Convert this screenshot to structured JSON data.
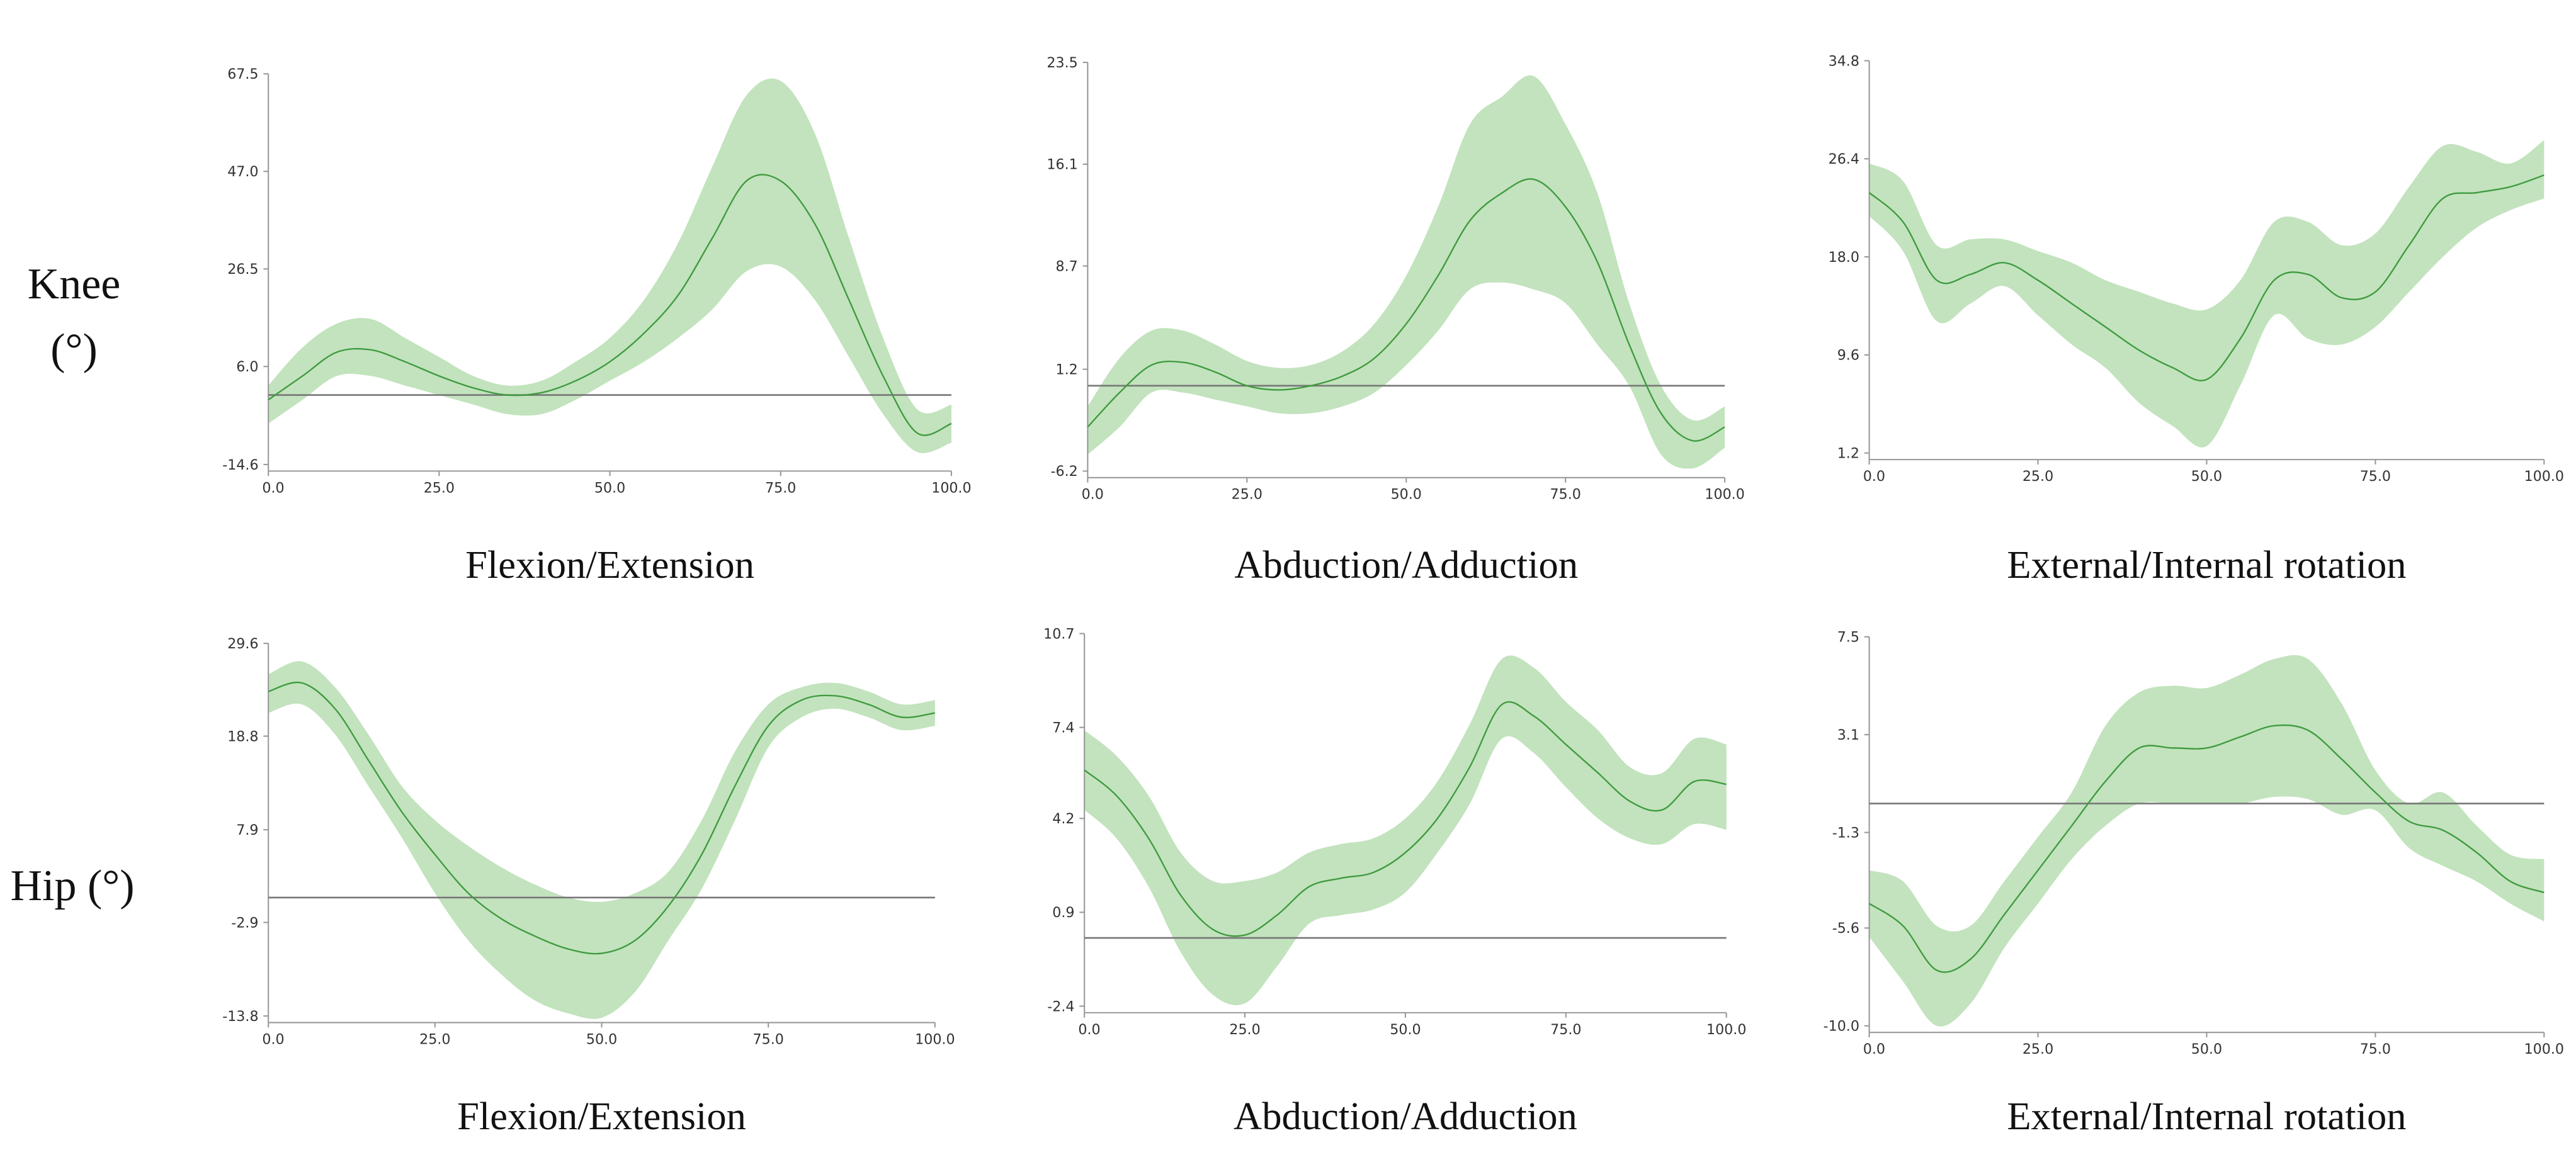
{
  "row_labels": [
    "Knee (°)",
    "Hip (°)"
  ],
  "chart_data": [
    {
      "type": "line",
      "title": "Flexion/Extension",
      "color": "#3f9a3f",
      "band_color": "#c2e3bd",
      "zero_line": true,
      "x": [
        0,
        5,
        10,
        15,
        20,
        25,
        30,
        35,
        40,
        45,
        50,
        55,
        60,
        65,
        70,
        75,
        80,
        85,
        90,
        95,
        100
      ],
      "values": [
        -1,
        4,
        9,
        9.5,
        7,
        4,
        1.5,
        0,
        0.5,
        3,
        7,
        13,
        21,
        33,
        45,
        45,
        36,
        20,
        4,
        -8,
        -6
      ],
      "upper": [
        2,
        10,
        15,
        16,
        12,
        8,
        4,
        2,
        3,
        7,
        12,
        20,
        32,
        48,
        63,
        66,
        55,
        33,
        12,
        -3,
        -2
      ],
      "lower": [
        -6,
        -1,
        4,
        4,
        2,
        0,
        -2,
        -4,
        -4,
        -1,
        3,
        7,
        12,
        18,
        26,
        27,
        20,
        8,
        -4,
        -12,
        -10
      ],
      "xlim": [
        0,
        100
      ],
      "xticks": [
        {
          "value": 0,
          "label": "0.0"
        },
        {
          "value": 25,
          "label": "25.0"
        },
        {
          "value": 50,
          "label": "50.0"
        },
        {
          "value": 75,
          "label": "75.0"
        },
        {
          "value": 100,
          "label": "100.0"
        }
      ],
      "ylim": [
        -14.6,
        67.5
      ],
      "yticks": [
        -14.6,
        {
          "value": 6,
          "label": "6.0"
        },
        26.5,
        {
          "value": 47,
          "label": "47.0"
        },
        67.5
      ]
    },
    {
      "type": "line",
      "title": "Abduction/Adduction",
      "color": "#3f9a3f",
      "band_color": "#c2e3bd",
      "zero_line": true,
      "x": [
        0,
        5,
        10,
        15,
        20,
        25,
        30,
        35,
        40,
        45,
        50,
        55,
        60,
        65,
        70,
        75,
        80,
        85,
        90,
        95,
        100
      ],
      "values": [
        -3,
        -0.5,
        1.5,
        1.7,
        1,
        0,
        -0.3,
        0,
        0.7,
        2,
        4.5,
        8,
        12,
        14,
        15,
        13,
        9,
        3,
        -2,
        -4,
        -3
      ],
      "upper": [
        -1.5,
        2,
        4,
        4,
        3,
        1.8,
        1.3,
        1.5,
        2.5,
        4.5,
        8,
        13,
        19,
        21,
        22.5,
        19,
        14,
        6,
        0,
        -2.5,
        -1.5
      ],
      "lower": [
        -5,
        -3,
        -0.5,
        -0.5,
        -1,
        -1.5,
        -2,
        -2,
        -1.5,
        -0.5,
        1.5,
        4,
        7,
        7.5,
        7,
        6,
        3,
        0,
        -5,
        -6,
        -4.5
      ],
      "xlim": [
        0,
        100
      ],
      "xticks": [
        {
          "value": 0,
          "label": "0.0"
        },
        {
          "value": 25,
          "label": "25.0"
        },
        {
          "value": 50,
          "label": "50.0"
        },
        {
          "value": 75,
          "label": "75.0"
        },
        {
          "value": 100,
          "label": "100.0"
        }
      ],
      "ylim": [
        -6.2,
        23.5
      ],
      "yticks": [
        -6.2,
        1.2,
        8.7,
        16.1,
        23.5
      ]
    },
    {
      "type": "line",
      "title": "External/Internal rotation",
      "color": "#3f9a3f",
      "band_color": "#c2e3bd",
      "zero_line": false,
      "x": [
        0,
        5,
        10,
        15,
        20,
        25,
        30,
        35,
        40,
        45,
        50,
        55,
        60,
        65,
        70,
        75,
        80,
        85,
        90,
        95,
        100
      ],
      "values": [
        23.5,
        21,
        16,
        16.5,
        17.5,
        16,
        14,
        12,
        10,
        8.5,
        7.5,
        11,
        16,
        16.5,
        14.5,
        15,
        19,
        23,
        23.5,
        24,
        25
      ],
      "upper": [
        26,
        24.5,
        19,
        19.5,
        19.5,
        18.5,
        17.5,
        16,
        15,
        14,
        13.5,
        16,
        21,
        21,
        19,
        20,
        24,
        27.5,
        27,
        26,
        28
      ],
      "lower": [
        21.5,
        18.5,
        12.5,
        14,
        15.5,
        13,
        10.5,
        8.5,
        5.5,
        3.5,
        1.8,
        7,
        13,
        11,
        10.5,
        12,
        15,
        18,
        20.5,
        22,
        23
      ],
      "xlim": [
        0,
        100
      ],
      "xticks": [
        {
          "value": 0,
          "label": "0.0"
        },
        {
          "value": 25,
          "label": "25.0"
        },
        {
          "value": 50,
          "label": "50.0"
        },
        {
          "value": 75,
          "label": "75.0"
        },
        {
          "value": 100,
          "label": "100.0"
        }
      ],
      "ylim": [
        1.2,
        34.8
      ],
      "yticks": [
        1.2,
        9.6,
        {
          "value": 18,
          "label": "18.0"
        },
        26.4,
        34.8
      ]
    },
    {
      "type": "line",
      "title": "Flexion/Extension",
      "color": "#3f9a3f",
      "band_color": "#c2e3bd",
      "zero_line": true,
      "x": [
        0,
        5,
        10,
        15,
        20,
        25,
        30,
        35,
        40,
        45,
        50,
        55,
        60,
        65,
        70,
        75,
        80,
        85,
        90,
        95,
        100
      ],
      "values": [
        24,
        25,
        22,
        16,
        10,
        5,
        0.5,
        -2.5,
        -4.5,
        -6,
        -6.5,
        -5,
        -1,
        5,
        13,
        20,
        23,
        23.5,
        22.5,
        21,
        21.5
      ],
      "upper": [
        26,
        27.5,
        24.5,
        19,
        13,
        9,
        6,
        3.5,
        1.5,
        0,
        -0.5,
        0.5,
        3,
        9,
        17,
        22.5,
        24.5,
        25,
        24,
        22.5,
        23
      ],
      "lower": [
        21.5,
        22.5,
        19,
        13,
        7,
        0.5,
        -5,
        -9,
        -12,
        -13.5,
        -14,
        -11,
        -5,
        1,
        9,
        17.5,
        21,
        22,
        21,
        19.5,
        20
      ],
      "xlim": [
        0,
        100
      ],
      "xticks": [
        {
          "value": 0,
          "label": "0.0"
        },
        {
          "value": 25,
          "label": "25.0"
        },
        {
          "value": 50,
          "label": "50.0"
        },
        {
          "value": 75,
          "label": "75.0"
        },
        {
          "value": 100,
          "label": "100.0"
        }
      ],
      "ylim": [
        -13.8,
        29.6
      ],
      "yticks": [
        -13.8,
        -2.9,
        7.9,
        18.8,
        29.6
      ]
    },
    {
      "type": "line",
      "title": "Abduction/Adduction",
      "color": "#3f9a3f",
      "band_color": "#c2e3bd",
      "zero_line": true,
      "x": [
        0,
        5,
        10,
        15,
        20,
        25,
        30,
        35,
        40,
        45,
        50,
        55,
        60,
        65,
        70,
        75,
        80,
        85,
        90,
        95,
        100
      ],
      "values": [
        5.9,
        5,
        3.5,
        1.5,
        0.3,
        0.1,
        0.8,
        1.8,
        2.1,
        2.3,
        3,
        4.2,
        6,
        8.2,
        7.8,
        6.8,
        5.8,
        4.8,
        4.5,
        5.5,
        5.4
      ],
      "upper": [
        7.3,
        6.4,
        5,
        3,
        2,
        2,
        2.3,
        3,
        3.3,
        3.5,
        4.2,
        5.5,
        7.5,
        9.8,
        9.5,
        8.3,
        7.3,
        6,
        5.8,
        7,
        6.8
      ],
      "lower": [
        4.5,
        3.5,
        1.8,
        -0.5,
        -2,
        -2.3,
        -1,
        0.5,
        0.8,
        1,
        1.6,
        3,
        4.7,
        7,
        6.5,
        5.3,
        4.2,
        3.5,
        3.3,
        4,
        3.8
      ],
      "xlim": [
        0,
        100
      ],
      "xticks": [
        {
          "value": 0,
          "label": "0.0"
        },
        {
          "value": 25,
          "label": "25.0"
        },
        {
          "value": 50,
          "label": "50.0"
        },
        {
          "value": 75,
          "label": "75.0"
        },
        {
          "value": 100,
          "label": "100.0"
        }
      ],
      "ylim": [
        -2.4,
        10.7
      ],
      "yticks": [
        -2.4,
        0.9,
        4.2,
        7.4,
        10.7
      ]
    },
    {
      "type": "line",
      "title": "External/Internal rotation",
      "color": "#3f9a3f",
      "band_color": "#c2e3bd",
      "zero_line": true,
      "x": [
        0,
        5,
        10,
        15,
        20,
        25,
        30,
        35,
        40,
        45,
        50,
        55,
        60,
        65,
        70,
        75,
        80,
        85,
        90,
        95,
        100
      ],
      "values": [
        -4.5,
        -5.5,
        -7.5,
        -7,
        -5,
        -3,
        -1,
        1,
        2.5,
        2.5,
        2.5,
        3,
        3.5,
        3.3,
        2,
        0.5,
        -0.8,
        -1.2,
        -2.2,
        -3.5,
        -4
      ],
      "upper": [
        -3,
        -3.5,
        -5.5,
        -5.5,
        -3.5,
        -1.5,
        0.5,
        3.5,
        5,
        5.3,
        5.2,
        5.8,
        6.5,
        6.5,
        4.5,
        1.5,
        0,
        0.5,
        -1,
        -2.3,
        -2.5
      ],
      "lower": [
        -6,
        -8,
        -10,
        -9,
        -6.5,
        -4.5,
        -2.5,
        -1,
        0,
        0,
        0,
        0,
        0.3,
        0.2,
        -0.5,
        -0.3,
        -2,
        -2.8,
        -3.5,
        -4.5,
        -5.3
      ],
      "xlim": [
        0,
        100
      ],
      "xticks": [
        {
          "value": 0,
          "label": "0.0"
        },
        {
          "value": 25,
          "label": "25.0"
        },
        {
          "value": 50,
          "label": "50.0"
        },
        {
          "value": 75,
          "label": "75.0"
        },
        {
          "value": 100,
          "label": "100.0"
        }
      ],
      "ylim": [
        {
          "value": -10,
          "label": "-10.0"
        },
        7.5
      ],
      "yticks": [
        {
          "value": -10,
          "label": "-10.0"
        },
        -5.6,
        -1.3,
        3.1,
        7.5
      ]
    }
  ]
}
